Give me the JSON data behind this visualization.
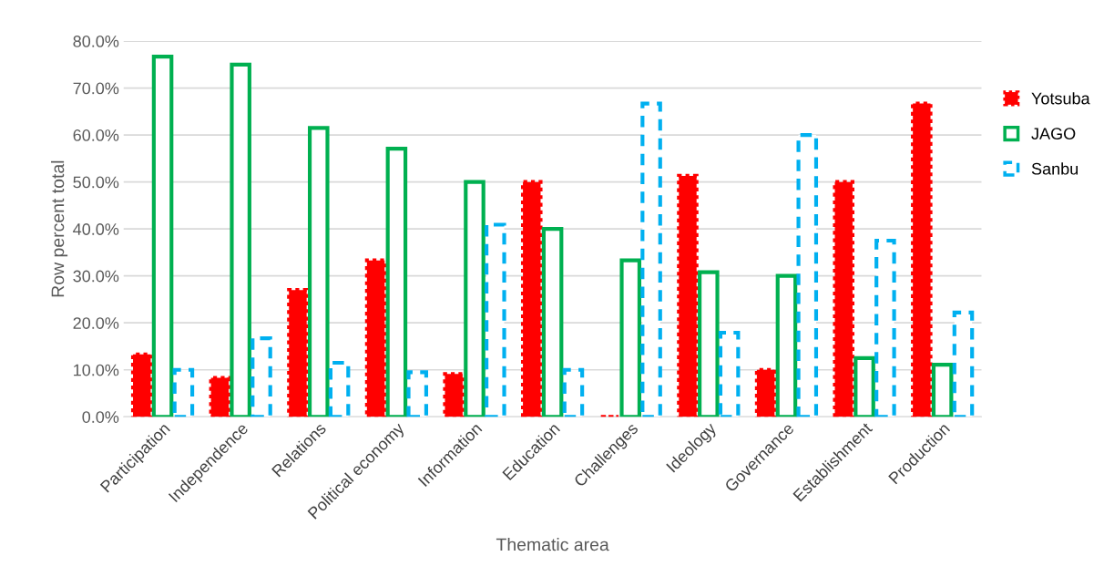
{
  "chart_data": {
    "type": "bar",
    "xlabel": "Thematic area",
    "ylabel": "Row percent total",
    "categories": [
      "Participation",
      "Independence",
      "Relations",
      "Political economy",
      "Information",
      "Education",
      "Challenges",
      "Ideology",
      "Governance",
      "Establishment",
      "Production"
    ],
    "series": [
      {
        "name": "Yotsuba",
        "color": "#ff0000",
        "line_style": "dotted",
        "values": [
          13.3,
          8.3,
          27.0,
          33.3,
          9.1,
          50.0,
          0,
          51.3,
          10.0,
          50.0,
          66.7
        ]
      },
      {
        "name": "JAGO",
        "color": "#00b050",
        "line_style": "solid",
        "values": [
          76.7,
          75.0,
          61.5,
          57.1,
          50.0,
          40.0,
          33.3,
          30.8,
          30.0,
          12.5,
          11.1
        ]
      },
      {
        "name": "Sanbu",
        "color": "#00b0f0",
        "line_style": "dashed",
        "values": [
          10.0,
          16.7,
          11.5,
          9.5,
          40.9,
          10.0,
          66.7,
          17.9,
          60.0,
          37.5,
          22.2
        ]
      }
    ],
    "ylim": [
      0,
      80
    ],
    "yticks": [
      {
        "value": 0,
        "label": "0.0%"
      },
      {
        "value": 10,
        "label": "10.0%"
      },
      {
        "value": 20,
        "label": "20.0%"
      },
      {
        "value": 30,
        "label": "30.0%"
      },
      {
        "value": 40,
        "label": "40.0%"
      },
      {
        "value": 50,
        "label": "50.0%"
      },
      {
        "value": 60,
        "label": "60.0%"
      },
      {
        "value": 70,
        "label": "70.0%"
      },
      {
        "value": 80,
        "label": "80.0%"
      }
    ],
    "grid": "y",
    "legend": "right"
  }
}
